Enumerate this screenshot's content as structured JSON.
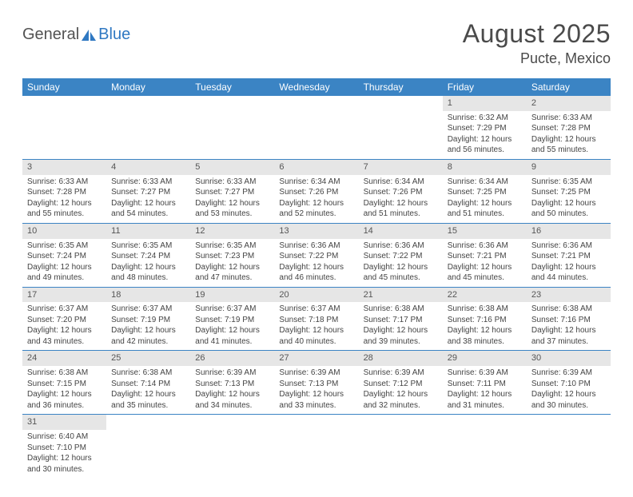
{
  "brand": {
    "part1": "General",
    "part2": "Blue"
  },
  "title": "August 2025",
  "location": "Pucte, Mexico",
  "colors": {
    "header_bg": "#3b84c4",
    "header_fg": "#ffffff",
    "daynum_bg": "#e6e6e6",
    "rule": "#3b84c4",
    "brand_blue": "#2f78c2",
    "text": "#444444"
  },
  "weekdays": [
    "Sunday",
    "Monday",
    "Tuesday",
    "Wednesday",
    "Thursday",
    "Friday",
    "Saturday"
  ],
  "weeks": [
    [
      {
        "n": "",
        "sr": "",
        "ss": "",
        "dl": ""
      },
      {
        "n": "",
        "sr": "",
        "ss": "",
        "dl": ""
      },
      {
        "n": "",
        "sr": "",
        "ss": "",
        "dl": ""
      },
      {
        "n": "",
        "sr": "",
        "ss": "",
        "dl": ""
      },
      {
        "n": "",
        "sr": "",
        "ss": "",
        "dl": ""
      },
      {
        "n": "1",
        "sr": "Sunrise: 6:32 AM",
        "ss": "Sunset: 7:29 PM",
        "dl": "Daylight: 12 hours and 56 minutes."
      },
      {
        "n": "2",
        "sr": "Sunrise: 6:33 AM",
        "ss": "Sunset: 7:28 PM",
        "dl": "Daylight: 12 hours and 55 minutes."
      }
    ],
    [
      {
        "n": "3",
        "sr": "Sunrise: 6:33 AM",
        "ss": "Sunset: 7:28 PM",
        "dl": "Daylight: 12 hours and 55 minutes."
      },
      {
        "n": "4",
        "sr": "Sunrise: 6:33 AM",
        "ss": "Sunset: 7:27 PM",
        "dl": "Daylight: 12 hours and 54 minutes."
      },
      {
        "n": "5",
        "sr": "Sunrise: 6:33 AM",
        "ss": "Sunset: 7:27 PM",
        "dl": "Daylight: 12 hours and 53 minutes."
      },
      {
        "n": "6",
        "sr": "Sunrise: 6:34 AM",
        "ss": "Sunset: 7:26 PM",
        "dl": "Daylight: 12 hours and 52 minutes."
      },
      {
        "n": "7",
        "sr": "Sunrise: 6:34 AM",
        "ss": "Sunset: 7:26 PM",
        "dl": "Daylight: 12 hours and 51 minutes."
      },
      {
        "n": "8",
        "sr": "Sunrise: 6:34 AM",
        "ss": "Sunset: 7:25 PM",
        "dl": "Daylight: 12 hours and 51 minutes."
      },
      {
        "n": "9",
        "sr": "Sunrise: 6:35 AM",
        "ss": "Sunset: 7:25 PM",
        "dl": "Daylight: 12 hours and 50 minutes."
      }
    ],
    [
      {
        "n": "10",
        "sr": "Sunrise: 6:35 AM",
        "ss": "Sunset: 7:24 PM",
        "dl": "Daylight: 12 hours and 49 minutes."
      },
      {
        "n": "11",
        "sr": "Sunrise: 6:35 AM",
        "ss": "Sunset: 7:24 PM",
        "dl": "Daylight: 12 hours and 48 minutes."
      },
      {
        "n": "12",
        "sr": "Sunrise: 6:35 AM",
        "ss": "Sunset: 7:23 PM",
        "dl": "Daylight: 12 hours and 47 minutes."
      },
      {
        "n": "13",
        "sr": "Sunrise: 6:36 AM",
        "ss": "Sunset: 7:22 PM",
        "dl": "Daylight: 12 hours and 46 minutes."
      },
      {
        "n": "14",
        "sr": "Sunrise: 6:36 AM",
        "ss": "Sunset: 7:22 PM",
        "dl": "Daylight: 12 hours and 45 minutes."
      },
      {
        "n": "15",
        "sr": "Sunrise: 6:36 AM",
        "ss": "Sunset: 7:21 PM",
        "dl": "Daylight: 12 hours and 45 minutes."
      },
      {
        "n": "16",
        "sr": "Sunrise: 6:36 AM",
        "ss": "Sunset: 7:21 PM",
        "dl": "Daylight: 12 hours and 44 minutes."
      }
    ],
    [
      {
        "n": "17",
        "sr": "Sunrise: 6:37 AM",
        "ss": "Sunset: 7:20 PM",
        "dl": "Daylight: 12 hours and 43 minutes."
      },
      {
        "n": "18",
        "sr": "Sunrise: 6:37 AM",
        "ss": "Sunset: 7:19 PM",
        "dl": "Daylight: 12 hours and 42 minutes."
      },
      {
        "n": "19",
        "sr": "Sunrise: 6:37 AM",
        "ss": "Sunset: 7:19 PM",
        "dl": "Daylight: 12 hours and 41 minutes."
      },
      {
        "n": "20",
        "sr": "Sunrise: 6:37 AM",
        "ss": "Sunset: 7:18 PM",
        "dl": "Daylight: 12 hours and 40 minutes."
      },
      {
        "n": "21",
        "sr": "Sunrise: 6:38 AM",
        "ss": "Sunset: 7:17 PM",
        "dl": "Daylight: 12 hours and 39 minutes."
      },
      {
        "n": "22",
        "sr": "Sunrise: 6:38 AM",
        "ss": "Sunset: 7:16 PM",
        "dl": "Daylight: 12 hours and 38 minutes."
      },
      {
        "n": "23",
        "sr": "Sunrise: 6:38 AM",
        "ss": "Sunset: 7:16 PM",
        "dl": "Daylight: 12 hours and 37 minutes."
      }
    ],
    [
      {
        "n": "24",
        "sr": "Sunrise: 6:38 AM",
        "ss": "Sunset: 7:15 PM",
        "dl": "Daylight: 12 hours and 36 minutes."
      },
      {
        "n": "25",
        "sr": "Sunrise: 6:38 AM",
        "ss": "Sunset: 7:14 PM",
        "dl": "Daylight: 12 hours and 35 minutes."
      },
      {
        "n": "26",
        "sr": "Sunrise: 6:39 AM",
        "ss": "Sunset: 7:13 PM",
        "dl": "Daylight: 12 hours and 34 minutes."
      },
      {
        "n": "27",
        "sr": "Sunrise: 6:39 AM",
        "ss": "Sunset: 7:13 PM",
        "dl": "Daylight: 12 hours and 33 minutes."
      },
      {
        "n": "28",
        "sr": "Sunrise: 6:39 AM",
        "ss": "Sunset: 7:12 PM",
        "dl": "Daylight: 12 hours and 32 minutes."
      },
      {
        "n": "29",
        "sr": "Sunrise: 6:39 AM",
        "ss": "Sunset: 7:11 PM",
        "dl": "Daylight: 12 hours and 31 minutes."
      },
      {
        "n": "30",
        "sr": "Sunrise: 6:39 AM",
        "ss": "Sunset: 7:10 PM",
        "dl": "Daylight: 12 hours and 30 minutes."
      }
    ],
    [
      {
        "n": "31",
        "sr": "Sunrise: 6:40 AM",
        "ss": "Sunset: 7:10 PM",
        "dl": "Daylight: 12 hours and 30 minutes."
      },
      {
        "n": "",
        "sr": "",
        "ss": "",
        "dl": ""
      },
      {
        "n": "",
        "sr": "",
        "ss": "",
        "dl": ""
      },
      {
        "n": "",
        "sr": "",
        "ss": "",
        "dl": ""
      },
      {
        "n": "",
        "sr": "",
        "ss": "",
        "dl": ""
      },
      {
        "n": "",
        "sr": "",
        "ss": "",
        "dl": ""
      },
      {
        "n": "",
        "sr": "",
        "ss": "",
        "dl": ""
      }
    ]
  ]
}
